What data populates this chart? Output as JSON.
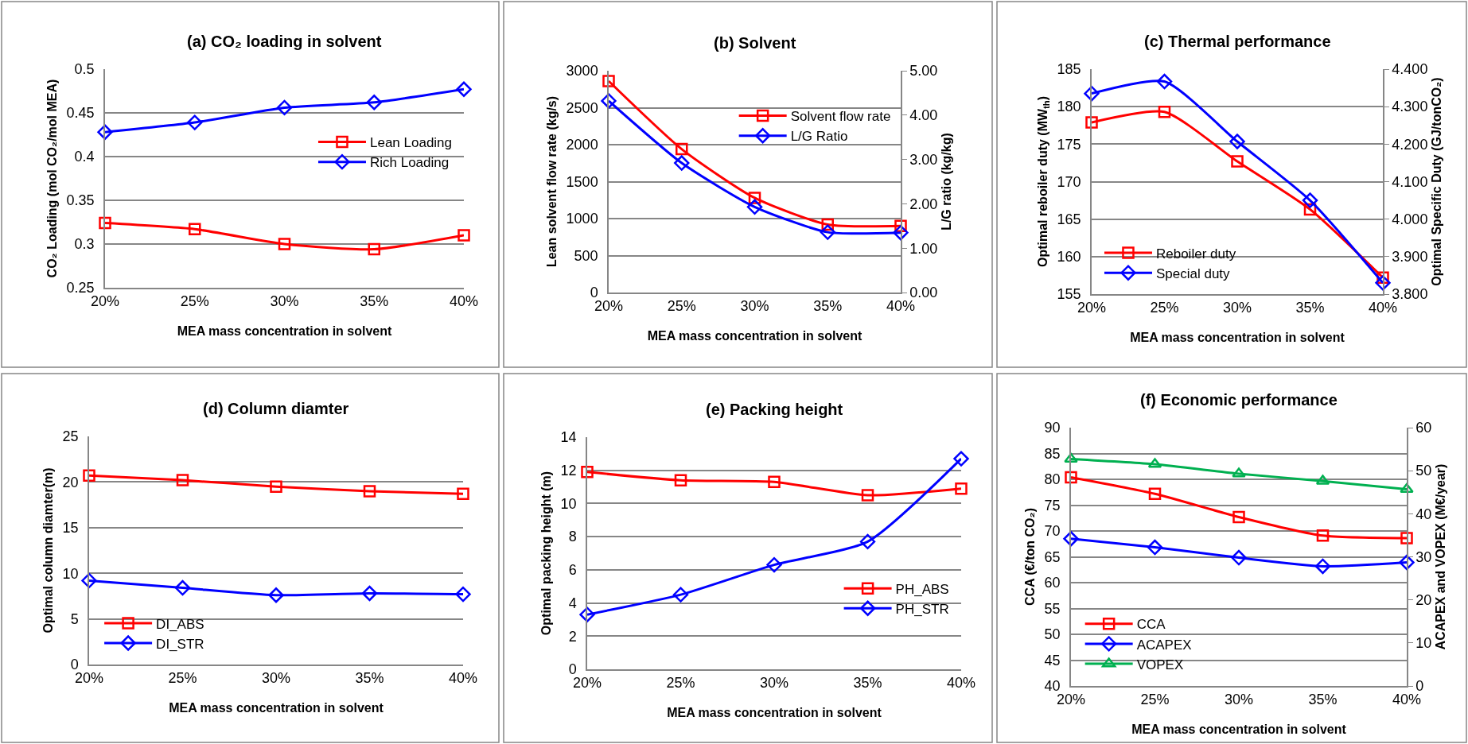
{
  "chart_data": [
    {
      "type": "line",
      "title": "(a) CO₂ loading in solvent",
      "xlabel": "MEA mass concentration in solvent",
      "ylabel": "CO₂ Loading (mol CO₂/mol MEA)",
      "categories": [
        "20%",
        "25%",
        "30%",
        "35%",
        "40%"
      ],
      "ylim": [
        0.25,
        0.5
      ],
      "yticks": [
        0.25,
        0.3,
        0.35,
        0.4,
        0.45,
        0.5
      ],
      "grid": "y",
      "legend": "right",
      "series": [
        {
          "name": "Lean Loading",
          "color": "#ff0000",
          "marker": "square",
          "values": [
            0.324,
            0.317,
            0.3,
            0.294,
            0.31
          ]
        },
        {
          "name": "Rich Loading",
          "color": "#0000ff",
          "marker": "diamond",
          "values": [
            0.428,
            0.439,
            0.456,
            0.462,
            0.477
          ]
        }
      ]
    },
    {
      "type": "line",
      "title": "(b) Solvent",
      "xlabel": "MEA mass concentration in solvent",
      "ylabel": "Lean solvent flow rate (kg/s)",
      "y2label": "L/G ratio (kg/kg)",
      "categories": [
        "20%",
        "25%",
        "30%",
        "35%",
        "40%"
      ],
      "ylim": [
        0,
        3000
      ],
      "yticks": [
        0,
        500,
        1000,
        1500,
        2000,
        2500,
        3000
      ],
      "y2lim": [
        0,
        5
      ],
      "y2ticks": [
        {
          "value": 0,
          "label": "0.00"
        },
        {
          "value": 1,
          "label": "1.00"
        },
        {
          "value": 2,
          "label": "2.00"
        },
        {
          "value": 3,
          "label": "3.00"
        },
        {
          "value": 4,
          "label": "4.00"
        },
        {
          "value": 5,
          "label": "5.00"
        }
      ],
      "grid": "y",
      "legend": "top right",
      "series": [
        {
          "name": "Solvent flow rate",
          "color": "#ff0000",
          "marker": "square",
          "values": [
            2860,
            1940,
            1280,
            920,
            900
          ]
        },
        {
          "name": "L/G Ratio",
          "color": "#0000ff",
          "marker": "diamond",
          "axis": "y2",
          "values": [
            4.32,
            2.92,
            1.93,
            1.36,
            1.35
          ]
        }
      ]
    },
    {
      "type": "line",
      "title": "(c) Thermal performance",
      "xlabel": "MEA mass concentration in solvent",
      "ylabel": "Optimal reboiler duty (MW$_{th}$)",
      "y2label": "Optimal Specific Duty (GJ/tonCO₂)",
      "categories": [
        "20%",
        "25%",
        "30%",
        "35%",
        "40%"
      ],
      "ylim": [
        155,
        185
      ],
      "yticks": [
        155,
        160,
        165,
        170,
        175,
        180,
        185
      ],
      "y2lim": [
        3.8,
        4.4
      ],
      "y2ticks": [
        {
          "value": 3.8,
          "label": "3.800"
        },
        {
          "value": 3.9,
          "label": "3.900"
        },
        {
          "value": 4.0,
          "label": "4.000"
        },
        {
          "value": 4.1,
          "label": "4.100"
        },
        {
          "value": 4.2,
          "label": "4.200"
        },
        {
          "value": 4.3,
          "label": "4.300"
        },
        {
          "value": 4.4,
          "label": "4.400"
        }
      ],
      "grid": "y",
      "legend": "bottom left",
      "series": [
        {
          "name": "Reboiler duty",
          "color": "#ff0000",
          "marker": "square",
          "values": [
            177.9,
            179.3,
            172.7,
            166.3,
            157.2
          ]
        },
        {
          "name": "Special duty",
          "color": "#0000ff",
          "marker": "diamond",
          "axis": "y2",
          "values": [
            4.335,
            4.367,
            4.207,
            4.05,
            3.83
          ]
        }
      ]
    },
    {
      "type": "line",
      "title": "(d) Column diamter",
      "xlabel": "MEA mass concentration in solvent",
      "ylabel": "Optimal column diamter(m)",
      "categories": [
        "20%",
        "25%",
        "30%",
        "35%",
        "40%"
      ],
      "ylim": [
        0,
        25
      ],
      "yticks": [
        0,
        5,
        10,
        15,
        20,
        25
      ],
      "grid": "y",
      "legend": "bottom left",
      "series": [
        {
          "name": "DI_ABS",
          "color": "#ff0000",
          "marker": "square",
          "values": [
            20.7,
            20.2,
            19.5,
            19.0,
            18.7
          ]
        },
        {
          "name": "DI_STR",
          "color": "#0000ff",
          "marker": "diamond",
          "values": [
            9.2,
            8.4,
            7.6,
            7.8,
            7.7
          ]
        }
      ]
    },
    {
      "type": "line",
      "title": "(e) Packing height",
      "xlabel": "MEA mass concentration in solvent",
      "ylabel": "Optimal packing height (m)",
      "categories": [
        "20%",
        "25%",
        "30%",
        "35%",
        "40%"
      ],
      "ylim": [
        0,
        14
      ],
      "yticks": [
        0,
        2,
        4,
        6,
        8,
        10,
        12,
        14
      ],
      "grid": "y",
      "legend": "bottom right",
      "series": [
        {
          "name": "PH_ABS",
          "color": "#ff0000",
          "marker": "square",
          "values": [
            11.9,
            11.4,
            11.3,
            10.5,
            10.9
          ]
        },
        {
          "name": "PH_STR",
          "color": "#0000ff",
          "marker": "diamond",
          "values": [
            3.3,
            4.5,
            6.3,
            7.7,
            12.7
          ]
        }
      ]
    },
    {
      "type": "line",
      "title": "(f) Economic performance",
      "xlabel": "MEA mass concentration in solvent",
      "ylabel": "CCA (€/ton CO₂)",
      "y2label": "ACAPEX and VOPEX (M€/year)",
      "categories": [
        "20%",
        "25%",
        "30%",
        "35%",
        "40%"
      ],
      "ylim": [
        40,
        90
      ],
      "yticks": [
        40,
        45,
        50,
        55,
        60,
        65,
        70,
        75,
        80,
        85,
        90
      ],
      "y2lim": [
        0,
        60
      ],
      "y2ticks": [
        0,
        10,
        20,
        30,
        40,
        50,
        60
      ],
      "grid": "y",
      "legend": "bottom left",
      "series": [
        {
          "name": "CCA",
          "color": "#ff0000",
          "marker": "square",
          "values": [
            80.4,
            77.2,
            72.7,
            69.1,
            68.6
          ]
        },
        {
          "name": "ACAPEX",
          "color": "#0000ff",
          "marker": "diamond",
          "axis": "y2",
          "values": [
            34.2,
            32.2,
            29.8,
            27.8,
            28.7
          ]
        },
        {
          "name": "VOPEX",
          "color": "#00b050",
          "marker": "triangle",
          "axis": "y2",
          "values": [
            52.7,
            51.5,
            49.3,
            47.6,
            45.7
          ]
        }
      ]
    }
  ]
}
